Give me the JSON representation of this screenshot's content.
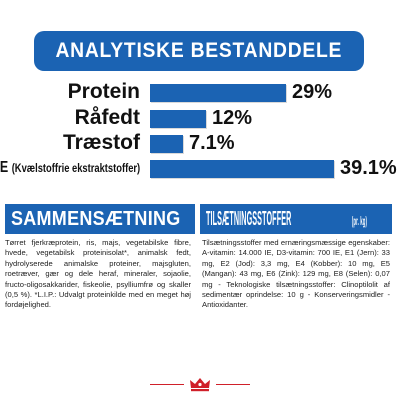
{
  "analysis": {
    "title": "ANALYTISKE BESTANDDELE",
    "rows": [
      {
        "label": "Protein",
        "value": "29%",
        "fraction": 0.29
      },
      {
        "label": "Råfedt",
        "value": "12%",
        "fraction": 0.12
      },
      {
        "label": "Træstof",
        "value": "7.1%",
        "fraction": 0.071
      },
      {
        "label": "NFE",
        "label_note": "(Kvælstoffrie ekstraktstoffer)",
        "value": "39.1%",
        "fraction": 0.391
      }
    ]
  },
  "composition": {
    "heading": "SAMMENSÆTNING",
    "text": "Tørret fjerkræprotein, ris, majs, vegetabilske fibre, hvede, vegetabilsk proteinisolat*, animalsk fedt, hydrolyserede animalske proteiner, majsgluten, roetræver, gær og dele heraf, mineraler, sojaolie, fructo-oligosakkarider, fiskeolie, psylliumfrø og skaller (0,5 %). *L.I.P.: Udvalgt proteinkilde med en meget høj fordøjelighed."
  },
  "additives": {
    "heading": "TILSÆTNINGSSTOFFER",
    "heading_note": "(pr. kg)",
    "text": "Tilsætningsstoffer med ernæringsmæssige egenskaber: A-vitamin: 14.000 IE, D3-vitamin: 700 IE, E1 (Jern): 33 mg, E2 (Jod): 3,3 mg, E4 (Kobber): 10 mg, E5 (Mangan): 43 mg, E6 (Zink): 129 mg, E8 (Selen): 0,07 mg - Teknologiske tilsætningsstoffer: Clinoptilolit af sedimentær oprindelse: 10 g - Konserveringsmidler - Antioxidanter."
  },
  "colors": {
    "brand_blue": "#1b63b3",
    "logo_red": "#d0202a"
  },
  "logo_icon": "royal-canin-crown-icon"
}
